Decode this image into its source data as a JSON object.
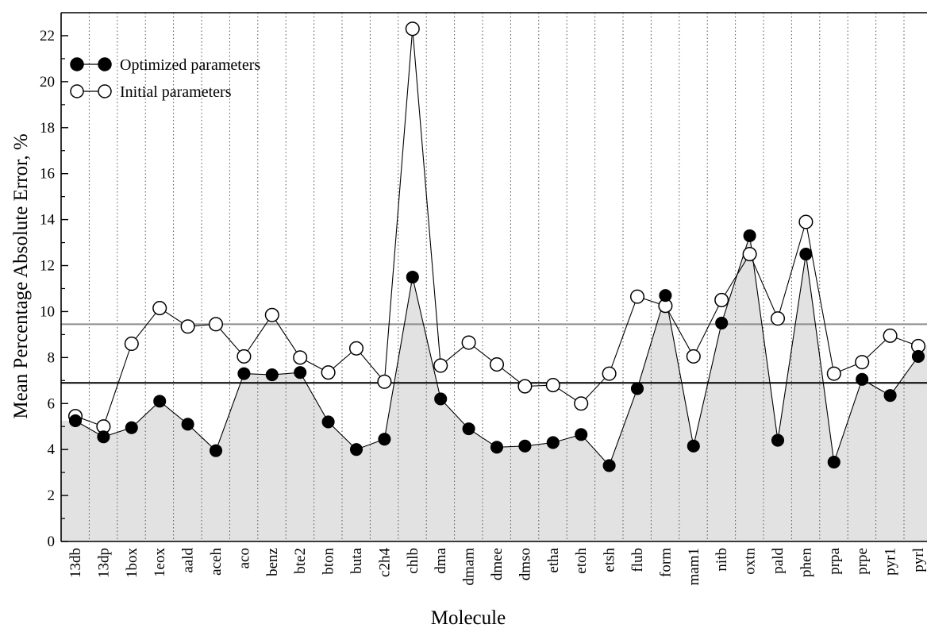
{
  "chart_data": {
    "type": "line",
    "title": "",
    "xlabel": "Molecule",
    "ylabel": "Mean Percentage Absolute Error, %",
    "ylim": [
      0,
      23
    ],
    "yticks": [
      0,
      2,
      4,
      6,
      8,
      10,
      12,
      14,
      16,
      18,
      20,
      22
    ],
    "grid": "vertical dotted lines at each category",
    "legend_position": "top-left",
    "categories": [
      "13db",
      "13dp",
      "1box",
      "1eox",
      "aald",
      "aceh",
      "aco",
      "benz",
      "bte2",
      "bton",
      "buta",
      "c2h4",
      "chlb",
      "dma",
      "dmam",
      "dmee",
      "dmso",
      "etha",
      "etoh",
      "etsh",
      "flub",
      "form",
      "mam1",
      "nitb",
      "oxtn",
      "pald",
      "phen",
      "prpa",
      "prpe",
      "pyr1",
      "pyrl"
    ],
    "series": [
      {
        "name": "Optimized parameters",
        "marker": "filled-circle",
        "values": [
          5.25,
          4.55,
          4.95,
          6.1,
          5.1,
          3.95,
          7.3,
          7.25,
          7.35,
          5.2,
          4.0,
          4.45,
          11.5,
          6.2,
          4.9,
          4.1,
          4.15,
          4.3,
          4.65,
          3.3,
          6.65,
          10.7,
          4.15,
          9.5,
          13.3,
          4.4,
          12.5,
          3.45,
          7.05,
          6.35,
          8.05
        ]
      },
      {
        "name": "Initial parameters",
        "marker": "open-circle",
        "values": [
          5.45,
          5.0,
          8.6,
          10.15,
          9.35,
          9.45,
          8.05,
          9.85,
          8.0,
          7.35,
          8.4,
          6.95,
          22.3,
          7.65,
          8.65,
          7.7,
          6.75,
          6.8,
          6.0,
          7.3,
          10.65,
          10.25,
          8.05,
          10.5,
          12.5,
          9.7,
          13.9,
          7.3,
          7.8,
          8.95,
          8.5
        ]
      }
    ],
    "reference_lines": [
      {
        "series": "Optimized parameters",
        "value": 6.9,
        "color": "#000000"
      },
      {
        "series": "Initial parameters",
        "value": 9.45,
        "color": "#8c8c8c"
      }
    ],
    "fill_under": "Optimized parameters",
    "colors": {
      "fill": "#e2e2e2",
      "line": "#000000",
      "mean_initial": "#8c8c8c"
    }
  }
}
